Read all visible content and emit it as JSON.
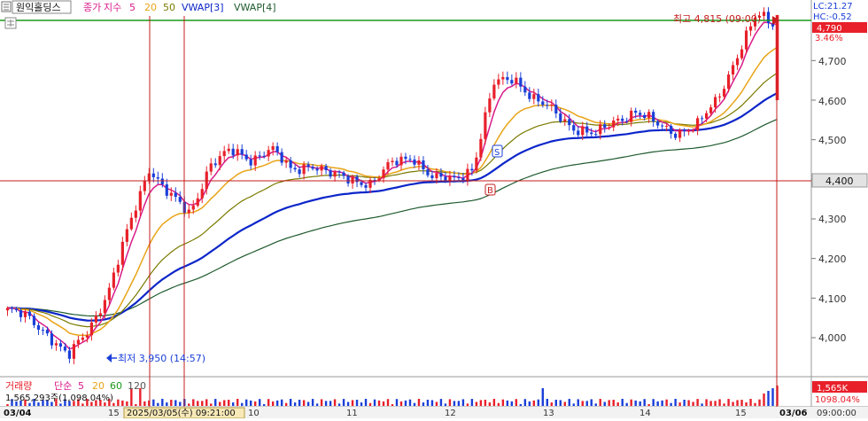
{
  "header": {
    "symbol": "원익홀딩스",
    "close_label": "종가",
    "ma_label": "지수",
    "ma_periods": [
      "5",
      "20",
      "50"
    ],
    "vwap_labels": [
      "VWAP[3]",
      "VWAP[4]"
    ]
  },
  "price_axis": {
    "ticks": [
      "4,700",
      "4,600",
      "4,500",
      "4,300",
      "4,200",
      "4,100",
      "4,000"
    ],
    "current_price": "4,790",
    "current_change": "3.46%",
    "lc": "LC:21.27",
    "hc": "HC:-0.52",
    "crosshair_price": "4,400"
  },
  "annotations": {
    "high": "최고 4,815 (09:00)",
    "low": "최저 3,950 (14:57)",
    "marker_s": "S",
    "marker_b": "B"
  },
  "volume": {
    "label": "거래량",
    "ma_label": "단순",
    "ma_periods": [
      "5",
      "20",
      "60",
      "120"
    ],
    "info": "1,565,293주(1,098.04%)",
    "current_volume": "1,565K",
    "current_ratio": "1098.04%"
  },
  "time_axis": {
    "labels": [
      "03/04",
      "15",
      "10",
      "11",
      "12",
      "13",
      "14",
      "15",
      "03/06"
    ],
    "crosshair_time": "2025/03/05(수) 09:21:00",
    "right_time": "09:00:00"
  },
  "colors": {
    "up": "#e8202a",
    "down": "#1a3fd8",
    "ma5": "#d81b8a",
    "ma20": "#e8a417",
    "ma50": "#7a7a00",
    "vwap3": "#0c26c9",
    "vwap4": "#1e5a2e",
    "highline": "#1a9a1a",
    "crosshair": "#c41e1e"
  },
  "chart_data": {
    "type": "candlestick",
    "instrument": "원익홀딩스",
    "ylim": [
      3900,
      4840
    ],
    "price_ticks": [
      4000,
      4100,
      4200,
      4300,
      4400,
      4500,
      4600,
      4700
    ],
    "current_price": 4790,
    "high": 4815,
    "low": 3950,
    "crosshair_price": 4400,
    "key_prices": [
      4070,
      4050,
      4010,
      3950,
      4020,
      4120,
      4280,
      4430,
      4360,
      4310,
      4440,
      4470,
      4450,
      4480,
      4420,
      4440,
      4410,
      4400,
      4390,
      4440,
      4460,
      4400,
      4400,
      4430,
      4640,
      4660,
      4600,
      4570,
      4530,
      4510,
      4550,
      4570,
      4540,
      4520,
      4530,
      4600,
      4710,
      4815,
      4790
    ]
  }
}
